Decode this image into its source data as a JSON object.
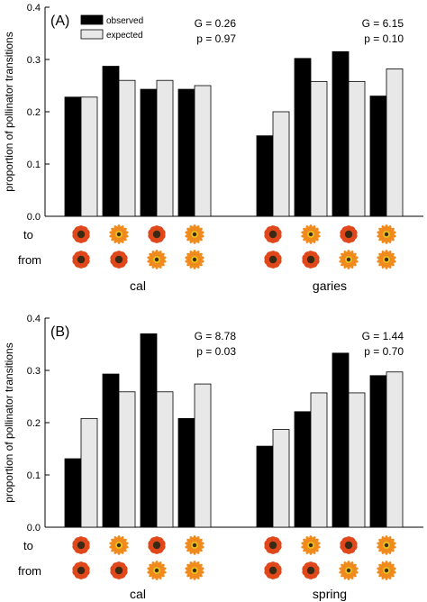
{
  "legend": {
    "observed": "observed",
    "expected": "expected",
    "observed_color": "#000000",
    "expected_color": "#e8e8e8"
  },
  "row_labels": {
    "to": "to",
    "from": "from"
  },
  "flower_colors": {
    "petal_red": "#e0481c",
    "petal_orange": "#f08a1c",
    "center_dark": "#3a2a14",
    "center_yellow": "#e8c020"
  },
  "chart_data": [
    {
      "type": "bar",
      "panel_label": "(A)",
      "ylabel": "proportion of pollinator transitions",
      "ylim": [
        0,
        0.4
      ],
      "yticks": [
        "0.0",
        "0.1",
        "0.2",
        "0.3",
        "0.4"
      ],
      "series_names": [
        "observed",
        "expected"
      ],
      "groups": [
        {
          "label": "cal",
          "stats": [
            "G = 0.26",
            "p = 0.97"
          ],
          "observed": [
            0.228,
            0.287,
            0.243,
            0.243
          ],
          "expected": [
            0.228,
            0.26,
            0.26,
            0.25
          ],
          "to_icons": [
            "red-flower-icon",
            "orange-flower-icon",
            "red-flower-icon",
            "orange-flower-icon"
          ],
          "from_icons": [
            "red-flower-icon",
            "red-flower-icon",
            "orange-flower-icon",
            "orange-flower-icon"
          ]
        },
        {
          "label": "garies",
          "stats": [
            "G = 6.15",
            "p = 0.10"
          ],
          "observed": [
            0.154,
            0.302,
            0.315,
            0.23
          ],
          "expected": [
            0.2,
            0.258,
            0.258,
            0.282
          ],
          "to_icons": [
            "red-flower-icon",
            "orange-flower-icon",
            "red-flower-icon",
            "orange-flower-icon"
          ],
          "from_icons": [
            "red-flower-icon",
            "red-flower-icon",
            "orange-flower-icon",
            "orange-flower-icon"
          ]
        }
      ]
    },
    {
      "type": "bar",
      "panel_label": "(B)",
      "ylabel": "proportion of pollinator transitions",
      "ylim": [
        0,
        0.4
      ],
      "yticks": [
        "0.0",
        "0.1",
        "0.2",
        "0.3",
        "0.4"
      ],
      "series_names": [
        "observed",
        "expected"
      ],
      "groups": [
        {
          "label": "cal",
          "stats": [
            "G = 8.78",
            "p = 0.03"
          ],
          "observed": [
            0.131,
            0.293,
            0.37,
            0.208
          ],
          "expected": [
            0.208,
            0.259,
            0.259,
            0.274
          ],
          "to_icons": [
            "red-flower-icon",
            "orange-flower-icon",
            "red-flower-icon",
            "orange-flower-icon"
          ],
          "from_icons": [
            "red-flower-icon",
            "red-flower-icon",
            "orange-flower-icon",
            "orange-flower-icon"
          ]
        },
        {
          "label": "spring",
          "stats": [
            "G = 1.44",
            "p = 0.70"
          ],
          "observed": [
            0.155,
            0.221,
            0.333,
            0.29
          ],
          "expected": [
            0.187,
            0.257,
            0.257,
            0.297
          ],
          "to_icons": [
            "red-flower-icon",
            "orange-flower-icon",
            "red-flower-icon",
            "orange-flower-icon"
          ],
          "from_icons": [
            "red-flower-icon",
            "red-flower-icon",
            "orange-flower-icon",
            "orange-flower-icon"
          ]
        }
      ]
    }
  ]
}
